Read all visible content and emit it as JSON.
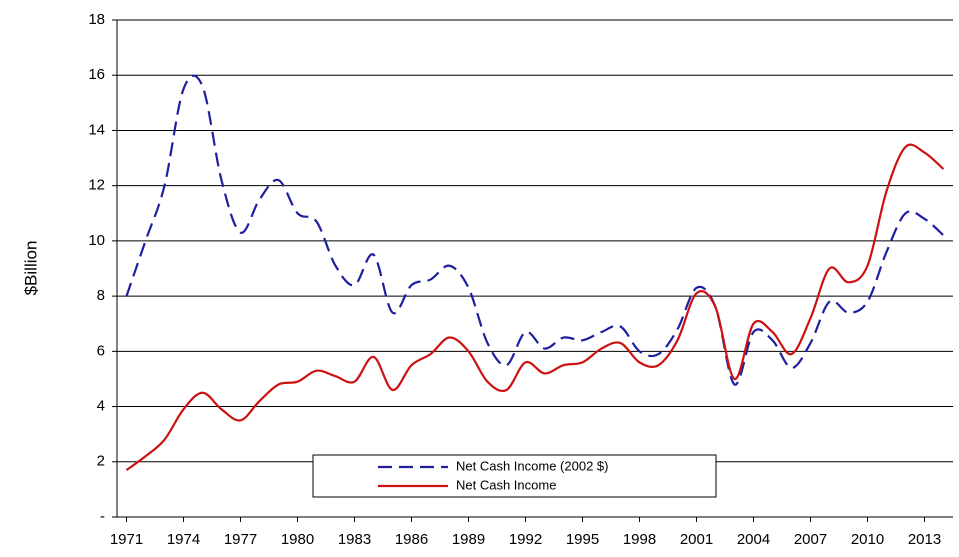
{
  "chart_data": {
    "type": "line",
    "y_label": "$Billion",
    "x": [
      1971,
      1972,
      1973,
      1974,
      1975,
      1976,
      1977,
      1978,
      1979,
      1980,
      1981,
      1982,
      1983,
      1984,
      1985,
      1986,
      1987,
      1988,
      1989,
      1990,
      1991,
      1992,
      1993,
      1994,
      1995,
      1996,
      1997,
      1998,
      1999,
      2000,
      2001,
      2002,
      2003,
      2004,
      2005,
      2006,
      2007,
      2008,
      2009,
      2010,
      2011,
      2012,
      2013,
      2014
    ],
    "series": [
      {
        "name": "Net Cash Income (2002 $)",
        "color": "#1f1f9f",
        "dashed": true,
        "values": [
          8.0,
          10.0,
          12.0,
          15.5,
          15.6,
          12.2,
          10.3,
          11.5,
          12.2,
          11.0,
          10.7,
          9.1,
          8.4,
          9.5,
          7.4,
          8.4,
          8.6,
          9.1,
          8.3,
          6.3,
          5.5,
          6.7,
          6.1,
          6.5,
          6.4,
          6.7,
          6.9,
          6.0,
          5.9,
          6.8,
          8.3,
          7.6,
          4.8,
          6.7,
          6.4,
          5.4,
          6.3,
          7.8,
          7.4,
          7.8,
          9.6,
          11.0,
          10.8,
          10.2
        ]
      },
      {
        "name": "Net Cash Income",
        "color": "#cc1111",
        "dashed": false,
        "values": [
          1.7,
          2.2,
          2.8,
          3.9,
          4.5,
          3.9,
          3.5,
          4.2,
          4.8,
          4.9,
          5.3,
          5.1,
          4.9,
          5.8,
          4.6,
          5.5,
          5.9,
          6.5,
          6.0,
          4.9,
          4.6,
          5.6,
          5.2,
          5.5,
          5.6,
          6.1,
          6.3,
          5.6,
          5.5,
          6.4,
          8.1,
          7.6,
          5.0,
          7.0,
          6.7,
          5.9,
          7.2,
          9.0,
          8.5,
          9.1,
          11.8,
          13.4,
          13.2,
          12.6
        ]
      }
    ],
    "xlim": [
      1970.5,
      2014.5
    ],
    "xticks": [
      1971,
      1974,
      1977,
      1980,
      1983,
      1986,
      1989,
      1992,
      1995,
      1998,
      2001,
      2004,
      2007,
      2010,
      2013
    ],
    "ylim": [
      0,
      18
    ],
    "yticks": [
      {
        "value": 0,
        "label": "-"
      },
      2,
      4,
      6,
      8,
      10,
      12,
      14,
      16,
      18
    ],
    "grid": true
  }
}
